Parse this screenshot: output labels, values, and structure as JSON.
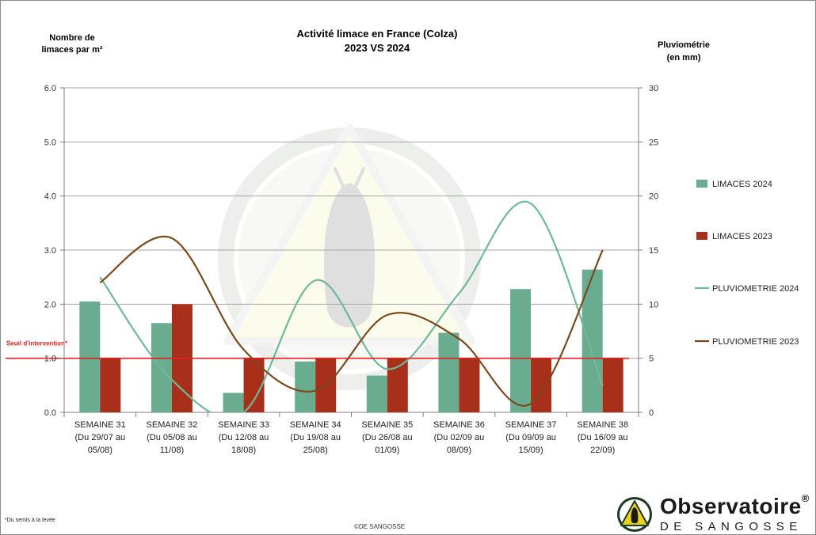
{
  "chart_data": {
    "type": "bar+line",
    "title": "Activité limace en France (Colza)",
    "subtitle": "2023 VS 2024",
    "y_left_label": [
      "Nombre de",
      "limaces par m²"
    ],
    "y_right_label": [
      "Pluviométrie",
      "(en mm)"
    ],
    "y_left_ticks": [
      "0.0",
      "1.0",
      "2.0",
      "3.0",
      "4.0",
      "5.0",
      "6.0"
    ],
    "y_right_ticks": [
      "0",
      "5",
      "10",
      "15",
      "20",
      "25",
      "30"
    ],
    "ylim_left": [
      0,
      6
    ],
    "ylim_right": [
      0,
      30
    ],
    "grid": true,
    "legend_position": "right",
    "categories": [
      [
        "SEMAINE 31",
        "(Du 29/07 au",
        "05/08)"
      ],
      [
        "SEMAINE 32",
        "(Du 05/08 au",
        "11/08)"
      ],
      [
        "SEMAINE 33",
        "(Du 12/08 au",
        "18/08)"
      ],
      [
        "SEMAINE 34",
        "(Du 19/08 au",
        "25/08)"
      ],
      [
        "SEMAINE 35",
        "(Du 26/08 au",
        "01/09)"
      ],
      [
        "SEMAINE 36",
        "(Du 02/09 au",
        "08/09)"
      ],
      [
        "SEMAINE 37",
        "(Du 09/09 au",
        "15/09)"
      ],
      [
        "SEMAINE 38",
        "(Du 16/09 au",
        "22/09)"
      ]
    ],
    "series": [
      {
        "name": "LIMACES 2024",
        "kind": "bar",
        "axis": "left",
        "color": "#6aac8f",
        "values": [
          2.05,
          1.65,
          0.36,
          0.94,
          0.68,
          1.47,
          2.28,
          2.64
        ]
      },
      {
        "name": "LIMACES 2023",
        "kind": "bar",
        "axis": "left",
        "color": "#a8301a",
        "values": [
          1.0,
          2.0,
          1.0,
          1.0,
          1.0,
          1.0,
          1.0,
          1.0
        ]
      },
      {
        "name": "PLUVIOMETRIE 2024",
        "kind": "line",
        "axis": "right",
        "color": "#6fb99a",
        "values": [
          12.5,
          3.0,
          0.0,
          12.2,
          4.0,
          11.0,
          19.3,
          2.5
        ]
      },
      {
        "name": "PLUVIOMETRIE 2023",
        "kind": "line",
        "axis": "right",
        "color": "#7a4a1c",
        "values": [
          12.0,
          16.1,
          5.8,
          2.0,
          9.0,
          6.8,
          0.8,
          15.0
        ]
      }
    ],
    "threshold": {
      "label": "Seuil d'intervention*",
      "value": 1.0,
      "color": "#e02020"
    }
  },
  "footnote": "*Du semis à la levée",
  "copyright": "©DE SANGOSSE",
  "brand": {
    "name": "Observatoire",
    "reg": "®",
    "sub": "DE SANGOSSE"
  }
}
